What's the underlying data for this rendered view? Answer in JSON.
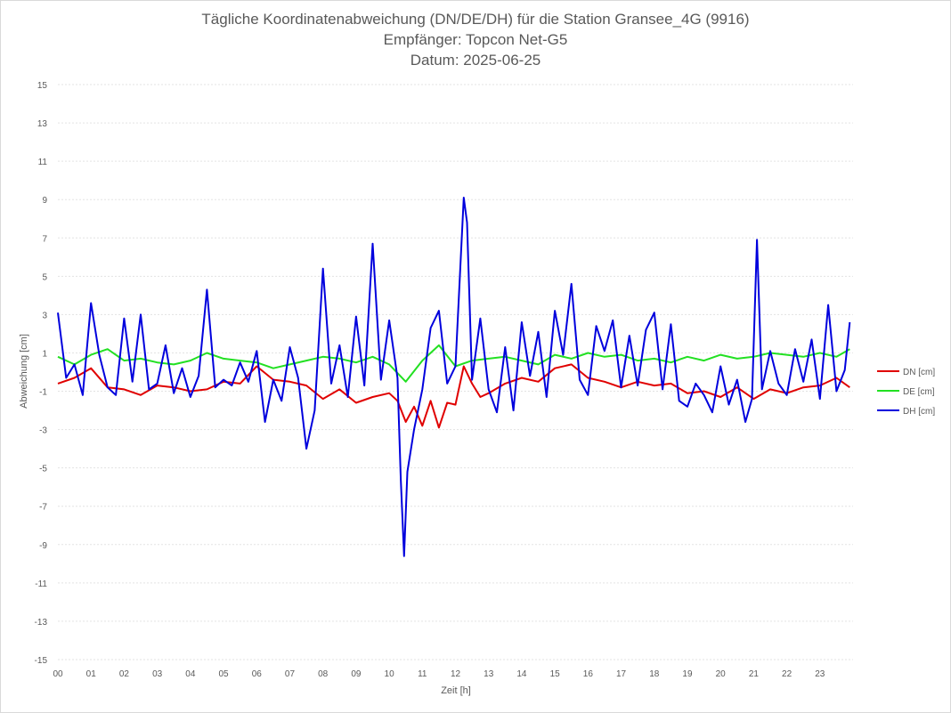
{
  "chart_data": {
    "type": "line",
    "title": "Tägliche Koordinatenabweichung (DN/DE/DH) für die Station Gransee_4G (9916)",
    "subtitle1": "Empfänger: Topcon Net-G5",
    "subtitle2": "Datum: 2025-06-25",
    "xlabel": "Zeit [h]",
    "ylabel": "Abweichung [cm]",
    "xlim": [
      0,
      24
    ],
    "ylim": [
      -15,
      15
    ],
    "yticks": [
      15,
      13,
      11,
      9,
      7,
      5,
      3,
      1,
      -1,
      -3,
      -5,
      -7,
      -9,
      -11,
      -13,
      -15
    ],
    "xticks": [
      "00",
      "01",
      "02",
      "03",
      "04",
      "05",
      "06",
      "07",
      "08",
      "09",
      "10",
      "11",
      "12",
      "13",
      "14",
      "15",
      "16",
      "17",
      "18",
      "19",
      "20",
      "21",
      "22",
      "23"
    ],
    "grid": true,
    "legend_position": "right",
    "series": [
      {
        "name": "DN [cm]",
        "color": "#e00000",
        "x": [
          0,
          0.5,
          1,
          1.5,
          2,
          2.5,
          3,
          3.5,
          4,
          4.5,
          5,
          5.5,
          6,
          6.5,
          7,
          7.5,
          8,
          8.5,
          9,
          9.5,
          10,
          10.25,
          10.5,
          10.75,
          11,
          11.25,
          11.5,
          11.75,
          12,
          12.25,
          12.5,
          12.75,
          13,
          13.5,
          14,
          14.5,
          15,
          15.5,
          16,
          16.5,
          17,
          17.5,
          18,
          18.5,
          19,
          19.5,
          20,
          20.5,
          21,
          21.5,
          22,
          22.5,
          23,
          23.5,
          23.9
        ],
        "values": [
          -0.6,
          -0.3,
          0.2,
          -0.8,
          -0.9,
          -1.2,
          -0.7,
          -0.8,
          -1.0,
          -0.9,
          -0.5,
          -0.6,
          0.3,
          -0.4,
          -0.5,
          -0.7,
          -1.4,
          -0.9,
          -1.6,
          -1.3,
          -1.1,
          -1.5,
          -2.6,
          -1.8,
          -2.8,
          -1.5,
          -2.9,
          -1.6,
          -1.7,
          0.3,
          -0.6,
          -1.3,
          -1.1,
          -0.6,
          -0.3,
          -0.5,
          0.2,
          0.4,
          -0.3,
          -0.5,
          -0.8,
          -0.5,
          -0.7,
          -0.6,
          -1.1,
          -1.0,
          -1.3,
          -0.8,
          -1.4,
          -0.9,
          -1.1,
          -0.8,
          -0.7,
          -0.3,
          -0.8
        ]
      },
      {
        "name": "DE [cm]",
        "color": "#22e022",
        "x": [
          0,
          0.5,
          1,
          1.5,
          2,
          2.5,
          3,
          3.5,
          4,
          4.5,
          5,
          5.5,
          6,
          6.5,
          7,
          7.5,
          8,
          8.5,
          9,
          9.5,
          10,
          10.5,
          11,
          11.5,
          12,
          12.5,
          13,
          13.5,
          14,
          14.5,
          15,
          15.5,
          16,
          16.5,
          17,
          17.5,
          18,
          18.5,
          19,
          19.5,
          20,
          20.5,
          21,
          21.5,
          22,
          22.5,
          23,
          23.5,
          23.9
        ],
        "values": [
          0.8,
          0.4,
          0.9,
          1.2,
          0.6,
          0.7,
          0.5,
          0.4,
          0.6,
          1.0,
          0.7,
          0.6,
          0.5,
          0.2,
          0.4,
          0.6,
          0.8,
          0.7,
          0.5,
          0.8,
          0.4,
          -0.5,
          0.6,
          1.4,
          0.3,
          0.6,
          0.7,
          0.8,
          0.6,
          0.4,
          0.9,
          0.7,
          1.0,
          0.8,
          0.9,
          0.6,
          0.7,
          0.5,
          0.8,
          0.6,
          0.9,
          0.7,
          0.8,
          1.0,
          0.9,
          0.8,
          1.0,
          0.8,
          1.2
        ]
      },
      {
        "name": "DH [cm]",
        "color": "#0000dd",
        "x": [
          0,
          0.25,
          0.5,
          0.75,
          1,
          1.25,
          1.5,
          1.75,
          2,
          2.25,
          2.5,
          2.75,
          3,
          3.25,
          3.5,
          3.75,
          4,
          4.25,
          4.5,
          4.75,
          5,
          5.25,
          5.5,
          5.75,
          6,
          6.25,
          6.5,
          6.75,
          7,
          7.25,
          7.5,
          7.75,
          8,
          8.25,
          8.5,
          8.75,
          9,
          9.25,
          9.5,
          9.75,
          10,
          10.25,
          10.35,
          10.45,
          10.55,
          10.75,
          11,
          11.25,
          11.5,
          11.75,
          12,
          12.25,
          12.35,
          12.5,
          12.75,
          13,
          13.25,
          13.5,
          13.75,
          14,
          14.25,
          14.5,
          14.75,
          15,
          15.25,
          15.5,
          15.75,
          16,
          16.25,
          16.5,
          16.75,
          17,
          17.25,
          17.5,
          17.75,
          18,
          18.25,
          18.5,
          18.75,
          19,
          19.25,
          19.5,
          19.75,
          20,
          20.25,
          20.5,
          20.75,
          20.95,
          21.1,
          21.25,
          21.5,
          21.75,
          22,
          22.25,
          22.5,
          22.75,
          23,
          23.25,
          23.5,
          23.75,
          23.9
        ],
        "values": [
          3.1,
          -0.3,
          0.4,
          -1.2,
          3.6,
          0.9,
          -0.8,
          -1.2,
          2.8,
          -0.5,
          3.0,
          -0.9,
          -0.6,
          1.4,
          -1.1,
          0.2,
          -1.3,
          -0.2,
          4.3,
          -0.8,
          -0.4,
          -0.7,
          0.5,
          -0.5,
          1.1,
          -2.6,
          -0.4,
          -1.5,
          1.3,
          -0.3,
          -4.0,
          -2.0,
          5.4,
          -0.6,
          1.4,
          -1.3,
          2.9,
          -0.7,
          6.7,
          -0.4,
          2.7,
          -0.3,
          -5.6,
          -9.6,
          -5.2,
          -3.0,
          -0.9,
          2.3,
          3.2,
          -0.6,
          0.3,
          9.1,
          7.8,
          -0.4,
          2.8,
          -0.9,
          -2.1,
          1.3,
          -2.0,
          2.6,
          -0.2,
          2.1,
          -1.3,
          3.2,
          0.9,
          4.6,
          -0.4,
          -1.2,
          2.4,
          1.1,
          2.7,
          -0.8,
          1.9,
          -0.7,
          2.2,
          3.1,
          -0.9,
          2.5,
          -1.5,
          -1.8,
          -0.6,
          -1.2,
          -2.1,
          0.3,
          -1.7,
          -0.4,
          -2.6,
          -1.4,
          6.9,
          -0.9,
          1.1,
          -0.6,
          -1.2,
          1.2,
          -0.5,
          1.7,
          -1.4,
          3.5,
          -1.0,
          0.1,
          2.6
        ]
      }
    ]
  }
}
